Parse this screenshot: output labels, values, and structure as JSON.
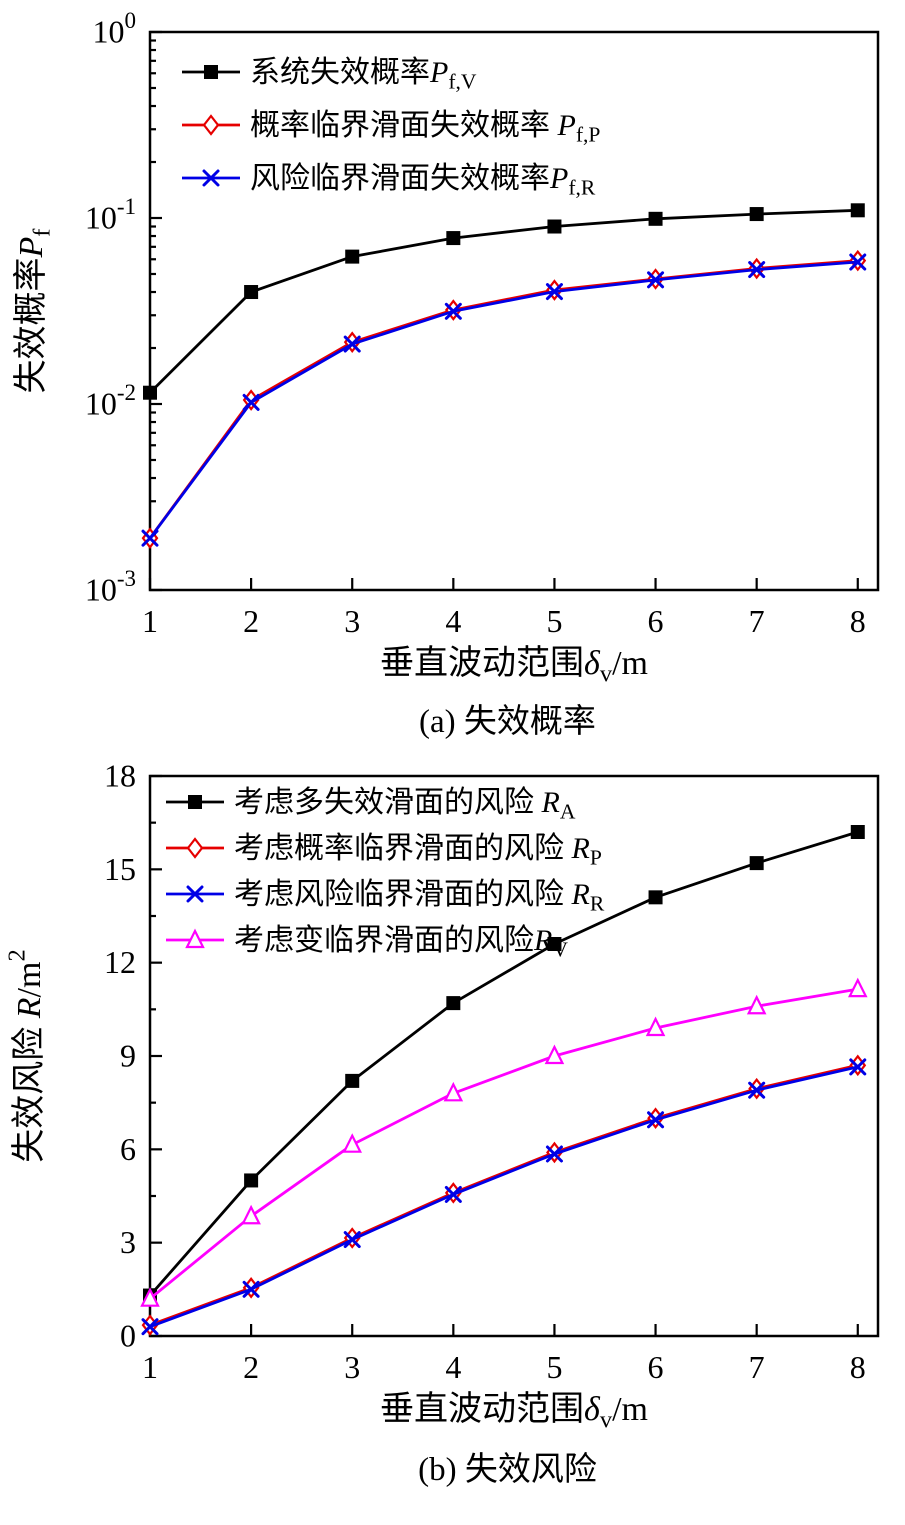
{
  "page": {
    "background": "#ffffff"
  },
  "chart_data": [
    {
      "type": "line",
      "caption": "(a)  失效概率",
      "xlabel_parts": [
        {
          "t": "垂直波动范围"
        },
        {
          "t": "δ",
          "i": 1
        },
        {
          "t": "v",
          "sub": 1
        },
        {
          "t": "/m"
        }
      ],
      "ylabel_parts": [
        {
          "t": "失效概率"
        },
        {
          "t": "P",
          "i": 1
        },
        {
          "t": "f",
          "sub": 1
        }
      ],
      "xlim": [
        1,
        8.2
      ],
      "ylim": [
        0.001,
        1
      ],
      "yscale": "log",
      "grid": false,
      "legend_position": "top-left-inside",
      "xticks": [
        1,
        2,
        3,
        4,
        5,
        6,
        7,
        8
      ],
      "yticks": [
        {
          "v": 1,
          "label": [
            {
              "t": "10"
            },
            {
              "t": "0",
              "sup": 1
            }
          ]
        },
        {
          "v": 0.1,
          "label": [
            {
              "t": "10"
            },
            {
              "t": "-1",
              "sup": 1
            }
          ]
        },
        {
          "v": 0.01,
          "label": [
            {
              "t": "10"
            },
            {
              "t": "-2",
              "sup": 1
            }
          ]
        },
        {
          "v": 0.001,
          "label": [
            {
              "t": "10"
            },
            {
              "t": "-3",
              "sup": 1
            }
          ]
        }
      ],
      "x": [
        1,
        2,
        3,
        4,
        5,
        6,
        7,
        8
      ],
      "series": [
        {
          "name": "系统失效概率 Pf,V",
          "label_parts": [
            {
              "t": "系统失效概率"
            },
            {
              "t": "P",
              "i": 1
            },
            {
              "t": "f,V",
              "sub": 1
            }
          ],
          "color": "#000000",
          "marker": "square",
          "values": [
            0.0115,
            0.04,
            0.062,
            0.078,
            0.09,
            0.099,
            0.105,
            0.11
          ]
        },
        {
          "name": "概率临界滑面失效概率 Pf,P",
          "label_parts": [
            {
              "t": "概率临界滑面失效概率 "
            },
            {
              "t": "P",
              "i": 1
            },
            {
              "t": "f,P",
              "sub": 1
            }
          ],
          "color": "#e60000",
          "marker": "diamond",
          "values": [
            0.0019,
            0.0105,
            0.0215,
            0.032,
            0.041,
            0.047,
            0.0535,
            0.059
          ]
        },
        {
          "name": "风险临界滑面失效概率 Pf,R",
          "label_parts": [
            {
              "t": "风险临界滑面失效概率"
            },
            {
              "t": "P",
              "i": 1
            },
            {
              "t": "f,R",
              "sub": 1
            }
          ],
          "color": "#0000e6",
          "marker": "x",
          "values": [
            0.0019,
            0.0102,
            0.021,
            0.0315,
            0.0402,
            0.0465,
            0.0528,
            0.058
          ]
        }
      ]
    },
    {
      "type": "line",
      "caption": "(b)  失效风险",
      "xlabel_parts": [
        {
          "t": "垂直波动范围"
        },
        {
          "t": "δ",
          "i": 1
        },
        {
          "t": "v",
          "sub": 1
        },
        {
          "t": "/m"
        }
      ],
      "ylabel_parts": [
        {
          "t": "失效风险 "
        },
        {
          "t": "R",
          "i": 1
        },
        {
          "t": "/m"
        },
        {
          "t": "2",
          "sup": 1
        }
      ],
      "xlim": [
        1,
        8.2
      ],
      "ylim": [
        0,
        18
      ],
      "yscale": "linear",
      "grid": false,
      "legend_position": "top-left-inside",
      "xticks": [
        1,
        2,
        3,
        4,
        5,
        6,
        7,
        8
      ],
      "yticks": [
        {
          "v": 0,
          "label": [
            {
              "t": "0"
            }
          ]
        },
        {
          "v": 3,
          "label": [
            {
              "t": "3"
            }
          ]
        },
        {
          "v": 6,
          "label": [
            {
              "t": "6"
            }
          ]
        },
        {
          "v": 9,
          "label": [
            {
              "t": "9"
            }
          ]
        },
        {
          "v": 12,
          "label": [
            {
              "t": "12"
            }
          ]
        },
        {
          "v": 15,
          "label": [
            {
              "t": "15"
            }
          ]
        },
        {
          "v": 18,
          "label": [
            {
              "t": "18"
            }
          ]
        }
      ],
      "yminor": [
        1.5,
        4.5,
        7.5,
        10.5,
        13.5,
        16.5
      ],
      "x": [
        1,
        2,
        3,
        4,
        5,
        6,
        7,
        8
      ],
      "series": [
        {
          "name": "考虑多失效滑面的风险 RA",
          "label_parts": [
            {
              "t": "考虑多失效滑面的风险 "
            },
            {
              "t": "R",
              "i": 1
            },
            {
              "t": "A",
              "sub": 1
            }
          ],
          "color": "#000000",
          "marker": "square",
          "values": [
            1.3,
            5.0,
            8.2,
            10.7,
            12.6,
            14.1,
            15.2,
            16.2
          ]
        },
        {
          "name": "考虑概率临界滑面的风险 RP",
          "label_parts": [
            {
              "t": "考虑概率临界滑面的风险 "
            },
            {
              "t": "R",
              "i": 1
            },
            {
              "t": "P",
              "sub": 1
            }
          ],
          "color": "#e60000",
          "marker": "diamond",
          "values": [
            0.35,
            1.55,
            3.15,
            4.6,
            5.9,
            7.0,
            7.95,
            8.7
          ]
        },
        {
          "name": "考虑风险临界滑面的风险 RR",
          "label_parts": [
            {
              "t": "考虑风险临界滑面的风险 "
            },
            {
              "t": "R",
              "i": 1
            },
            {
              "t": "R",
              "sub": 1
            }
          ],
          "color": "#0000e6",
          "marker": "x",
          "values": [
            0.3,
            1.5,
            3.1,
            4.55,
            5.85,
            6.95,
            7.9,
            8.65
          ]
        },
        {
          "name": "考虑变临界滑面的风险 RV",
          "label_parts": [
            {
              "t": "考虑变临界滑面的风险"
            },
            {
              "t": "R",
              "i": 1
            },
            {
              "t": "V",
              "sub": 1
            }
          ],
          "color": "#ff00ff",
          "marker": "triangle",
          "values": [
            1.2,
            3.85,
            6.15,
            7.8,
            9.0,
            9.9,
            10.6,
            11.15
          ]
        }
      ]
    }
  ]
}
